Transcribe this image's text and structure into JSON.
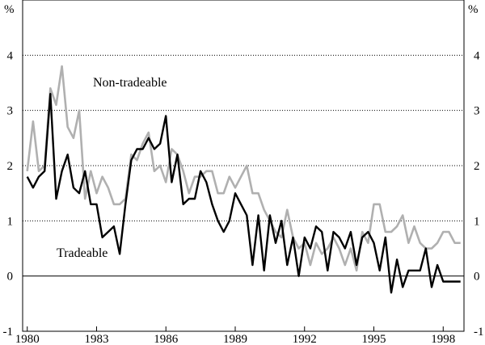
{
  "chart_data": {
    "type": "line",
    "title": "",
    "xlabel": "",
    "ylabel": "",
    "y_unit_left": "%",
    "y_unit_right": "%",
    "ylim": [
      -1,
      5
    ],
    "xlim": [
      1980,
      1998.75
    ],
    "grid": "horizontal dotted",
    "x_ticks": [
      1980,
      1983,
      1986,
      1989,
      1992,
      1995,
      1998
    ],
    "x_tick_labels": [
      "1980",
      "1983",
      "1986",
      "1989",
      "1992",
      "1995",
      "1998"
    ],
    "y_ticks": [
      -1,
      0,
      1,
      2,
      3,
      4
    ],
    "y_tick_labels": [
      "-1",
      "0",
      "1",
      "2",
      "3",
      "4"
    ],
    "series": [
      {
        "name": "Non-tradeable",
        "color": "#b0b0b0",
        "x": [
          1980.0,
          1980.25,
          1980.5,
          1980.75,
          1981.0,
          1981.25,
          1981.5,
          1981.75,
          1982.0,
          1982.25,
          1982.5,
          1982.75,
          1983.0,
          1983.25,
          1983.5,
          1983.75,
          1984.0,
          1984.25,
          1984.5,
          1984.75,
          1985.0,
          1985.25,
          1985.5,
          1985.75,
          1986.0,
          1986.25,
          1986.5,
          1986.75,
          1987.0,
          1987.25,
          1987.5,
          1987.75,
          1988.0,
          1988.25,
          1988.5,
          1988.75,
          1989.0,
          1989.25,
          1989.5,
          1989.75,
          1990.0,
          1990.25,
          1990.5,
          1990.75,
          1991.0,
          1991.25,
          1991.5,
          1991.75,
          1992.0,
          1992.25,
          1992.5,
          1992.75,
          1993.0,
          1993.25,
          1993.5,
          1993.75,
          1994.0,
          1994.25,
          1994.5,
          1994.75,
          1995.0,
          1995.25,
          1995.5,
          1995.75,
          1996.0,
          1996.25,
          1996.5,
          1996.75,
          1997.0,
          1997.25,
          1997.5,
          1997.75,
          1998.0,
          1998.25,
          1998.5,
          1998.75
        ],
        "values": [
          1.9,
          2.8,
          1.9,
          2.0,
          3.4,
          3.1,
          3.8,
          2.7,
          2.5,
          3.0,
          1.4,
          1.9,
          1.5,
          1.8,
          1.6,
          1.3,
          1.3,
          1.4,
          2.2,
          2.1,
          2.4,
          2.6,
          1.9,
          2.0,
          1.7,
          2.3,
          2.2,
          1.9,
          1.5,
          1.8,
          1.8,
          1.9,
          1.9,
          1.5,
          1.5,
          1.8,
          1.6,
          1.8,
          2.0,
          1.5,
          1.5,
          1.2,
          1.0,
          0.8,
          0.7,
          1.2,
          0.7,
          0.5,
          0.6,
          0.2,
          0.6,
          0.4,
          0.5,
          0.7,
          0.5,
          0.2,
          0.5,
          0.1,
          0.8,
          0.6,
          1.3,
          1.3,
          0.8,
          0.8,
          0.9,
          1.1,
          0.6,
          0.9,
          0.6,
          0.5,
          0.5,
          0.6,
          0.8,
          0.8,
          0.6,
          0.6
        ]
      },
      {
        "name": "Tradeable",
        "color": "#000000",
        "x": [
          1980.0,
          1980.25,
          1980.5,
          1980.75,
          1981.0,
          1981.25,
          1981.5,
          1981.75,
          1982.0,
          1982.25,
          1982.5,
          1982.75,
          1983.0,
          1983.25,
          1983.5,
          1983.75,
          1984.0,
          1984.25,
          1984.5,
          1984.75,
          1985.0,
          1985.25,
          1985.5,
          1985.75,
          1986.0,
          1986.25,
          1986.5,
          1986.75,
          1987.0,
          1987.25,
          1987.5,
          1987.75,
          1988.0,
          1988.25,
          1988.5,
          1988.75,
          1989.0,
          1989.25,
          1989.5,
          1989.75,
          1990.0,
          1990.25,
          1990.5,
          1990.75,
          1991.0,
          1991.25,
          1991.5,
          1991.75,
          1992.0,
          1992.25,
          1992.5,
          1992.75,
          1993.0,
          1993.25,
          1993.5,
          1993.75,
          1994.0,
          1994.25,
          1994.5,
          1994.75,
          1995.0,
          1995.25,
          1995.5,
          1995.75,
          1996.0,
          1996.25,
          1996.5,
          1996.75,
          1997.0,
          1997.25,
          1997.5,
          1997.75,
          1998.0,
          1998.25,
          1998.5,
          1998.75
        ],
        "values": [
          1.8,
          1.6,
          1.8,
          1.9,
          3.3,
          1.4,
          1.9,
          2.2,
          1.6,
          1.5,
          1.9,
          1.3,
          1.3,
          0.7,
          0.8,
          0.9,
          0.4,
          1.3,
          2.1,
          2.3,
          2.3,
          2.5,
          2.3,
          2.4,
          2.9,
          1.7,
          2.2,
          1.3,
          1.4,
          1.4,
          1.9,
          1.7,
          1.3,
          1.0,
          0.8,
          1.0,
          1.5,
          1.3,
          1.1,
          0.2,
          1.1,
          0.1,
          1.1,
          0.6,
          1.0,
          0.2,
          0.7,
          0.0,
          0.7,
          0.5,
          0.9,
          0.8,
          0.1,
          0.8,
          0.7,
          0.5,
          0.8,
          0.2,
          0.7,
          0.8,
          0.6,
          0.1,
          0.7,
          -0.3,
          0.3,
          -0.2,
          0.1,
          0.1,
          0.1,
          0.5,
          -0.2,
          0.2,
          -0.1,
          -0.1,
          -0.1,
          -0.1
        ]
      }
    ],
    "annotations": [
      {
        "text": "Non-tradeable",
        "series": "Non-tradeable"
      },
      {
        "text": "Tradeable",
        "series": "Tradeable"
      }
    ]
  }
}
